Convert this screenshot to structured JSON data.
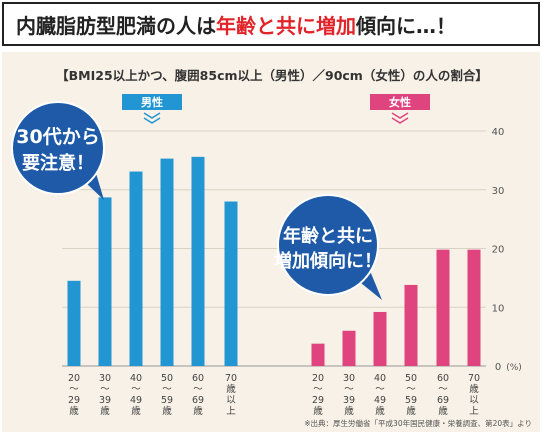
{
  "headline": {
    "part1": "内臓脂肪型肥満の人は",
    "highlight1": "年齢と共に増加",
    "part2": "傾向に…！"
  },
  "chart_data": {
    "type": "bar",
    "title": "【BMI25以上かつ、腹囲85cm以上（男性）／90cm（女性）の人の割合】",
    "ylim": [
      0,
      40
    ],
    "ytick_values": [
      0,
      10,
      20,
      30,
      40
    ],
    "ytick_labels": [
      "0",
      "10",
      "20",
      "30",
      "40"
    ],
    "y_unit": "(%)",
    "grid": true,
    "categories": [
      "20〜29歳",
      "30〜39歳",
      "40〜49歳",
      "50〜59歳",
      "60〜69歳",
      "70歳以上"
    ],
    "category_lines": [
      [
        "20",
        "〜",
        "29",
        "歳"
      ],
      [
        "30",
        "〜",
        "39",
        "歳"
      ],
      [
        "40",
        "〜",
        "49",
        "歳"
      ],
      [
        "50",
        "〜",
        "59",
        "歳"
      ],
      [
        "60",
        "〜",
        "69",
        "歳"
      ],
      [
        "70",
        "歳",
        "以",
        "上"
      ]
    ],
    "series": [
      {
        "name": "男性",
        "color": "#2196d3",
        "values": [
          14.5,
          28.7,
          33.1,
          35.3,
          35.6,
          28.0
        ]
      },
      {
        "name": "女性",
        "color": "#e0447f",
        "values": [
          3.8,
          6.0,
          9.2,
          13.8,
          19.8,
          19.8
        ]
      }
    ],
    "annotations": [
      {
        "lines": [
          "30代から",
          "要注意！"
        ],
        "color": "#1e5aa8"
      },
      {
        "lines": [
          "年齢と共に",
          "増加傾向に！"
        ],
        "color": "#1e5aa8"
      }
    ],
    "source": "※出典：厚生労働省「平成30年国民健康・栄養調査、第20表」より"
  }
}
